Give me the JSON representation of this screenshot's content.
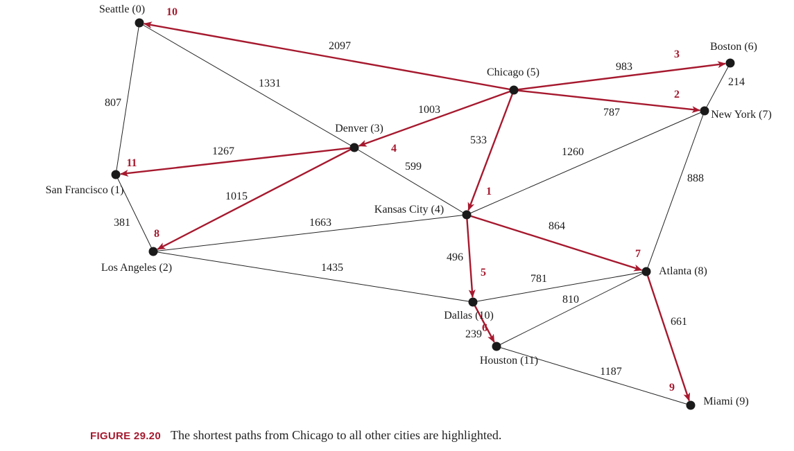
{
  "colors": {
    "highlight": "#a6192e",
    "edge": "#222222",
    "node": "#1a1a1a",
    "caption_label": "#a6192e"
  },
  "caption": {
    "label": "FIGURE 29.20",
    "text": "The shortest paths from Chicago to all other cities are highlighted."
  },
  "cities": [
    {
      "id": "seattle",
      "label": "Seattle (0)"
    },
    {
      "id": "san-francisco",
      "label": "San Francisco (1)"
    },
    {
      "id": "los-angeles",
      "label": "Los Angeles (2)"
    },
    {
      "id": "denver",
      "label": "Denver (3)"
    },
    {
      "id": "kansas-city",
      "label": "Kansas City (4)"
    },
    {
      "id": "chicago",
      "label": "Chicago (5)"
    },
    {
      "id": "boston",
      "label": "Boston (6)"
    },
    {
      "id": "new-york",
      "label": "New York (7)"
    },
    {
      "id": "atlanta",
      "label": "Atlanta (8)"
    },
    {
      "id": "miami",
      "label": "Miami (9)"
    },
    {
      "id": "dallas",
      "label": "Dallas (10)"
    },
    {
      "id": "houston",
      "label": "Houston (11)"
    }
  ],
  "edges": [
    {
      "from": "seattle",
      "to": "san-francisco",
      "weight": "807",
      "highlighted": false
    },
    {
      "from": "seattle",
      "to": "denver",
      "weight": "1331",
      "highlighted": false
    },
    {
      "from": "denver",
      "to": "kansas-city",
      "weight": "599",
      "highlighted": false
    },
    {
      "from": "san-francisco",
      "to": "los-angeles",
      "weight": "381",
      "highlighted": false
    },
    {
      "from": "los-angeles",
      "to": "kansas-city",
      "weight": "1663",
      "highlighted": false
    },
    {
      "from": "los-angeles",
      "to": "dallas",
      "weight": "1435",
      "highlighted": false
    },
    {
      "from": "kansas-city",
      "to": "new-york",
      "weight": "1260",
      "highlighted": false
    },
    {
      "from": "boston",
      "to": "new-york",
      "weight": "214",
      "highlighted": false
    },
    {
      "from": "new-york",
      "to": "atlanta",
      "weight": "888",
      "highlighted": false
    },
    {
      "from": "dallas",
      "to": "atlanta",
      "weight": "781",
      "highlighted": false
    },
    {
      "from": "houston",
      "to": "atlanta",
      "weight": "810",
      "highlighted": false
    },
    {
      "from": "houston",
      "to": "miami",
      "weight": "1187",
      "highlighted": false
    },
    {
      "from": "chicago",
      "to": "seattle",
      "weight": "2097",
      "highlighted": true,
      "order": "10"
    },
    {
      "from": "chicago",
      "to": "boston",
      "weight": "983",
      "highlighted": true,
      "order": "3"
    },
    {
      "from": "chicago",
      "to": "new-york",
      "weight": "787",
      "highlighted": true,
      "order": "2"
    },
    {
      "from": "chicago",
      "to": "denver",
      "weight": "1003",
      "highlighted": true,
      "order": "4"
    },
    {
      "from": "chicago",
      "to": "kansas-city",
      "weight": "533",
      "highlighted": true,
      "order": "1"
    },
    {
      "from": "denver",
      "to": "san-francisco",
      "weight": "1267",
      "highlighted": true,
      "order": "11"
    },
    {
      "from": "denver",
      "to": "los-angeles",
      "weight": "1015",
      "highlighted": true,
      "order": "8"
    },
    {
      "from": "kansas-city",
      "to": "atlanta",
      "weight": "864",
      "highlighted": true,
      "order": "7"
    },
    {
      "from": "kansas-city",
      "to": "dallas",
      "weight": "496",
      "highlighted": true,
      "order": "5"
    },
    {
      "from": "dallas",
      "to": "houston",
      "weight": "239",
      "highlighted": true,
      "order": "6"
    },
    {
      "from": "atlanta",
      "to": "miami",
      "weight": "661",
      "highlighted": true,
      "order": "9"
    }
  ]
}
